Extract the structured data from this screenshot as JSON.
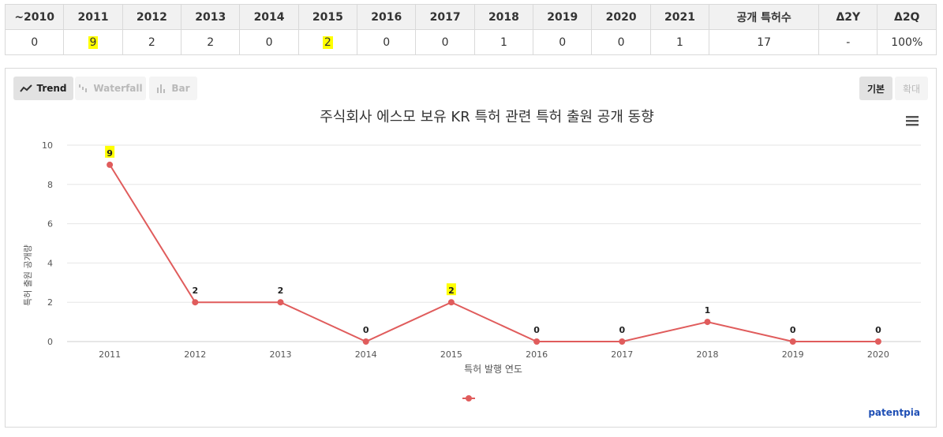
{
  "table": {
    "headers": [
      "~2010",
      "2011",
      "2012",
      "2013",
      "2014",
      "2015",
      "2016",
      "2017",
      "2018",
      "2019",
      "2020",
      "2021",
      "공개 특허수",
      "Δ2Y",
      "Δ2Q"
    ],
    "values": [
      "0",
      "9",
      "2",
      "2",
      "0",
      "2",
      "0",
      "0",
      "1",
      "0",
      "0",
      "1",
      "17",
      "-",
      "100%"
    ],
    "highlight_columns": [
      1,
      5
    ],
    "highlight_color": "#ffff00"
  },
  "toolbar": {
    "trend_label": "Trend",
    "waterfall_label": "Waterfall",
    "bar_label": "Bar",
    "basic_label": "기본",
    "zoom_label": "확대"
  },
  "menu_icon": "hamburger-menu-icon",
  "brand": "patentpia",
  "chart_data": {
    "type": "line",
    "title": "주식회사 에스모 보유 KR 특허 관련 특허 출원 공개 동향",
    "xlabel": "특허 발행 연도",
    "ylabel": "특허 출원 공개량",
    "categories": [
      "2011",
      "2012",
      "2013",
      "2014",
      "2015",
      "2016",
      "2017",
      "2018",
      "2019",
      "2020"
    ],
    "series": [
      {
        "values": [
          9,
          2,
          2,
          0,
          2,
          0,
          0,
          1,
          0,
          0
        ],
        "color": "#e05c5c"
      }
    ],
    "ylim": [
      0,
      10
    ],
    "yticks": [
      0,
      2,
      4,
      6,
      8,
      10
    ],
    "highlight_points": [
      0,
      4
    ],
    "grid": true,
    "legend": "bottom-center"
  }
}
